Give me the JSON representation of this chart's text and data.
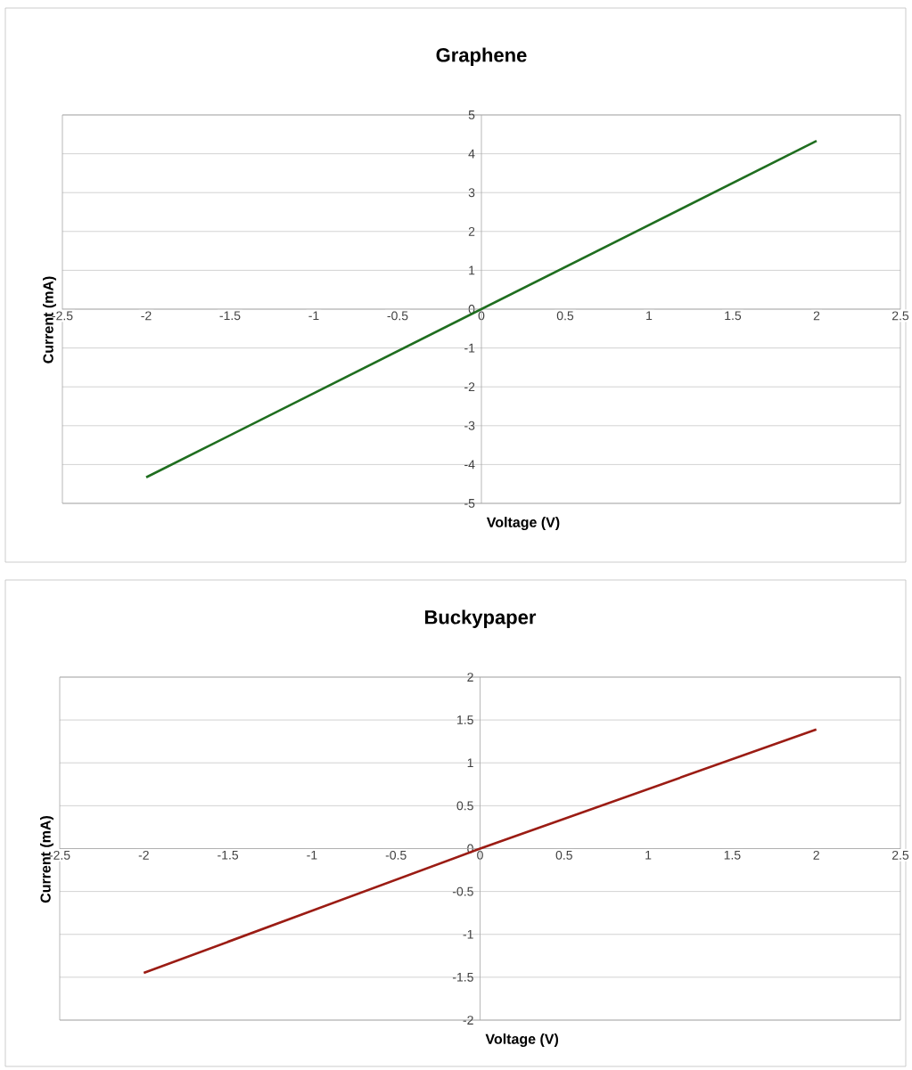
{
  "chart_data": [
    {
      "type": "line",
      "title": "Graphene",
      "xlabel": "Voltage (V)",
      "ylabel": "Current (mA)",
      "x": [
        -2,
        0,
        2
      ],
      "series": [
        {
          "color": "#1f6e1f",
          "values": [
            -4.33,
            0,
            4.33
          ]
        }
      ],
      "xlim": [
        -2.5,
        2.5
      ],
      "ylim": [
        -5,
        5
      ],
      "xticks": [
        -2.5,
        -2,
        -1.5,
        -1,
        -0.5,
        0,
        0.5,
        1,
        1.5,
        2,
        2.5
      ],
      "yticks": [
        -5,
        -4,
        -3,
        -2,
        -1,
        0,
        1,
        2,
        3,
        4,
        5
      ],
      "grid": "y"
    },
    {
      "type": "line",
      "title": "Buckypaper",
      "xlabel": "Voltage (V)",
      "ylabel": "Current (mA)",
      "x": [
        -2,
        0,
        2
      ],
      "series": [
        {
          "color": "#9b1c14",
          "values": [
            -1.45,
            0,
            1.39
          ]
        }
      ],
      "xlim": [
        -2.5,
        2.5
      ],
      "ylim": [
        -2,
        2
      ],
      "xticks": [
        -2.5,
        -2,
        -1.5,
        -1,
        -0.5,
        0,
        0.5,
        1,
        1.5,
        2,
        2.5
      ],
      "yticks": [
        -2,
        -1.5,
        -1,
        -0.5,
        0,
        0.5,
        1,
        1.5,
        2
      ],
      "grid": "y"
    }
  ]
}
